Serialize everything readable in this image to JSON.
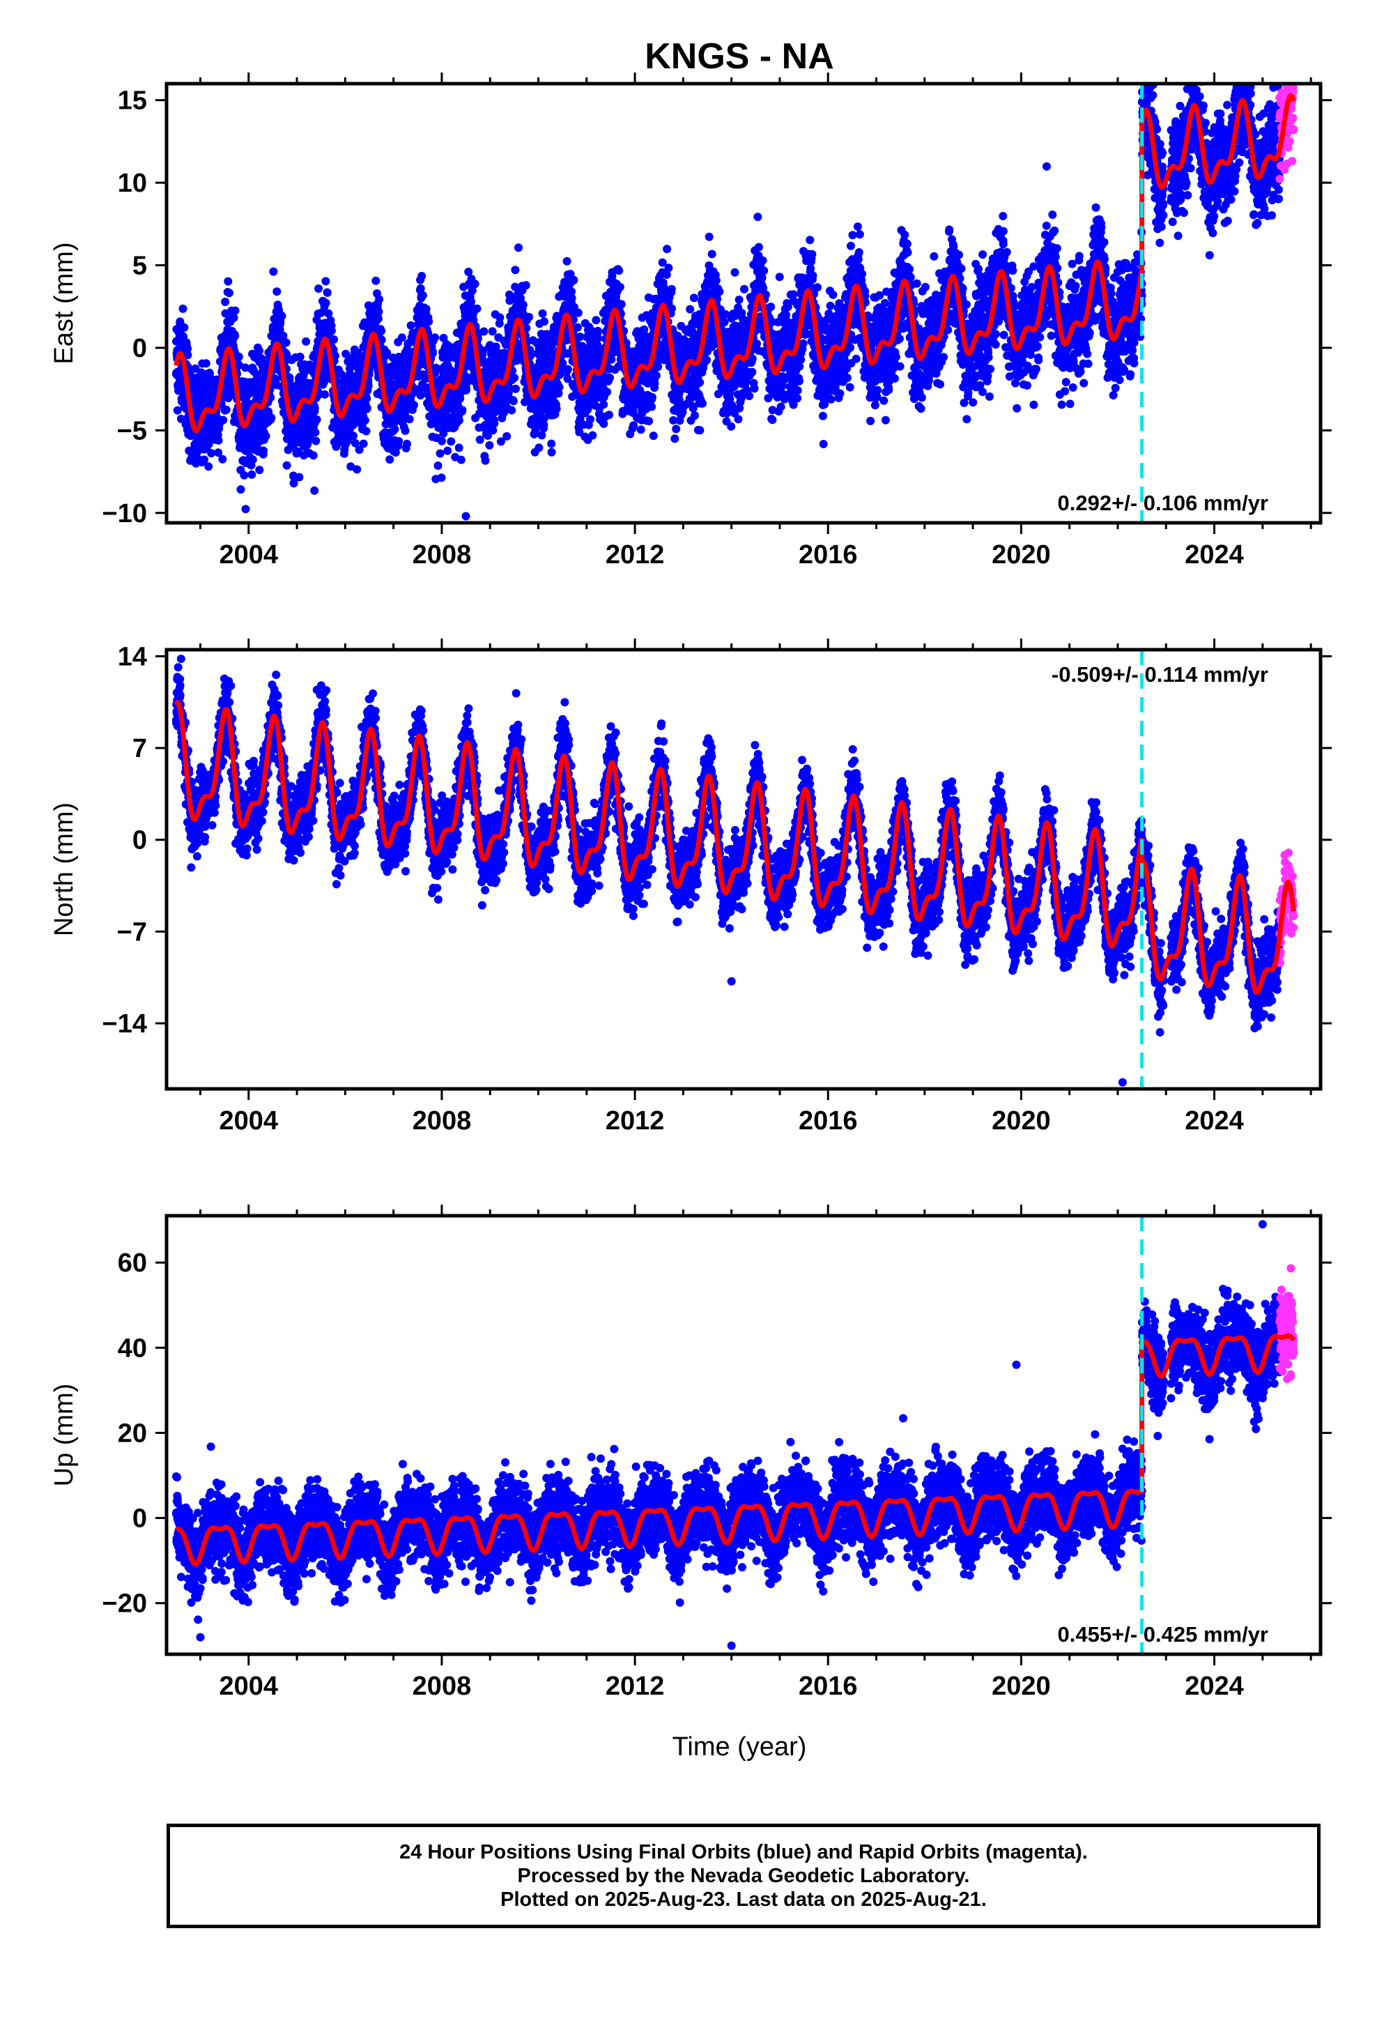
{
  "colors": {
    "final_orbits": "#0000ff",
    "rapid_orbits": "#ff33ff",
    "model_fit": "#ff0000",
    "event_line": "#00e5ee",
    "axes": "#000000"
  },
  "chart_data": {
    "title": "KNGS - NA",
    "x_axis": {
      "label": "Time (year)",
      "range": [
        2002.3,
        2026.2
      ],
      "ticks": [
        2004,
        2008,
        2012,
        2016,
        2020,
        2024
      ],
      "tick_labels": [
        "2004",
        "2008",
        "2012",
        "2016",
        "2020",
        "2024"
      ]
    },
    "event_line_year": 2022.5,
    "first_data_year": 2002.5,
    "last_final_year": 2025.35,
    "last_data_year": 2025.64,
    "panels": [
      {
        "type": "scatter",
        "component": "East",
        "ylabel": "East (mm)",
        "ylim": [
          -10.6,
          16
        ],
        "yticks": [
          -10,
          -5,
          0,
          5,
          10,
          15
        ],
        "ytick_labels": [
          "−10",
          "−5",
          "0",
          "5",
          "10",
          "15"
        ],
        "rate_label": "0.292+/- 0.106 mm/yr",
        "rate_position": "bottom-right",
        "model": {
          "value_at_2002_5": -3.2,
          "rate_mm_per_yr": 0.292,
          "annual_amplitude": 1.9,
          "annual_peak_phase": 0.55,
          "semiannual_amplitude": 1.0,
          "semiannual_peak_phase": 0.1,
          "offset_at_event_mm": 8.9
        },
        "scatter_sigma": 1.5,
        "outliers": [
          {
            "x": 2008.5,
            "y": -10.2
          }
        ]
      },
      {
        "type": "scatter",
        "component": "North",
        "ylabel": "North (mm)",
        "ylim": [
          -19,
          14.5
        ],
        "yticks": [
          -14,
          -7,
          0,
          7,
          14
        ],
        "ytick_labels": [
          "−14",
          "−7",
          "0",
          "7",
          "14"
        ],
        "rate_label": "-0.509+/- 0.114 mm/yr",
        "rate_position": "top-right",
        "model": {
          "value_at_2002_5": 5.3,
          "rate_mm_per_yr": -0.509,
          "annual_amplitude": 3.7,
          "annual_peak_phase": 0.5,
          "semiannual_amplitude": 1.6,
          "semiannual_peak_phase": 0.05,
          "offset_at_event_mm": -2.0
        },
        "scatter_sigma": 1.3,
        "outliers": [
          {
            "x": 2022.1,
            "y": -18.5
          },
          {
            "x": 2014.0,
            "y": -10.8
          },
          {
            "x": 2002.6,
            "y": 13.8
          }
        ]
      },
      {
        "type": "scatter",
        "component": "Up",
        "ylabel": "Up (mm)",
        "ylim": [
          -32,
          71
        ],
        "yticks": [
          -20,
          0,
          20,
          40,
          60
        ],
        "ytick_labels": [
          "−20",
          "0",
          "20",
          "40",
          "60"
        ],
        "rate_label": "0.455+/- 0.425 mm/yr",
        "rate_position": "bottom-right",
        "model": {
          "value_at_2002_5": -5.5,
          "rate_mm_per_yr": 0.455,
          "annual_amplitude": 4.0,
          "annual_peak_phase": 0.4,
          "semiannual_amplitude": 1.5,
          "semiannual_peak_phase": 0.15,
          "offset_at_event_mm": 35.0
        },
        "scatter_sigma": 4.5,
        "outliers": [
          {
            "x": 2014.0,
            "y": -30
          },
          {
            "x": 2025.0,
            "y": 69
          },
          {
            "x": 2019.9,
            "y": 36
          },
          {
            "x": 2003.0,
            "y": -28
          }
        ]
      }
    ]
  },
  "caption": {
    "line1": "24 Hour Positions Using Final Orbits (blue) and Rapid Orbits (magenta).",
    "line2": "Processed by the Nevada Geodetic Laboratory.",
    "line3": "Plotted on 2025-Aug-23. Last data on 2025-Aug-21."
  }
}
